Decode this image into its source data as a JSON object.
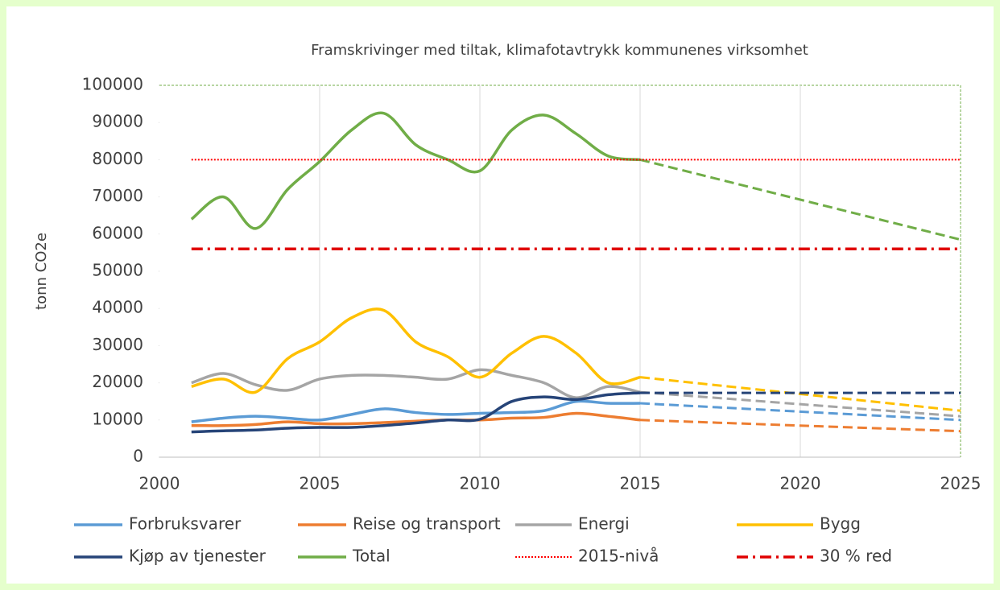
{
  "chart_data": {
    "type": "line",
    "title": "Framskrivinger med tiltak, klimafotavtrykk kommunenes virksomhet",
    "y_label": "tonn CO2e",
    "x": [
      2001,
      2002,
      2003,
      2004,
      2005,
      2006,
      2007,
      2008,
      2009,
      2010,
      2011,
      2012,
      2013,
      2014,
      2015,
      2025
    ],
    "xlim": [
      2000,
      2025
    ],
    "xticks": [
      2000,
      2005,
      2010,
      2015,
      2020,
      2025
    ],
    "ylim": [
      0,
      100000
    ],
    "yticks": [
      0,
      10000,
      20000,
      30000,
      40000,
      50000,
      60000,
      70000,
      80000,
      90000,
      100000
    ],
    "projection_from": 2015,
    "series": [
      {
        "name": "Forbruksvarer",
        "color": "#5b9bd5",
        "style": "smooth",
        "values": [
          9500,
          10500,
          11000,
          10500,
          10000,
          11500,
          13000,
          12000,
          11500,
          11800,
          12000,
          12500,
          15000,
          14500,
          14500,
          10000
        ]
      },
      {
        "name": "Reise og transport",
        "color": "#ed7d31",
        "style": "smooth",
        "values": [
          8500,
          8500,
          8800,
          9500,
          9000,
          9000,
          9300,
          9700,
          10000,
          10000,
          10500,
          10700,
          11800,
          11000,
          10000,
          7000
        ]
      },
      {
        "name": "Energi",
        "color": "#a5a5a5",
        "style": "smooth",
        "values": [
          20000,
          22500,
          19500,
          18000,
          21000,
          22000,
          22000,
          21500,
          21000,
          23500,
          22000,
          20000,
          16000,
          19000,
          17500,
          11000
        ]
      },
      {
        "name": "Bygg",
        "color": "#ffc000",
        "style": "smooth",
        "values": [
          19000,
          21000,
          17500,
          26500,
          31000,
          37500,
          39500,
          31000,
          27000,
          21500,
          28000,
          32500,
          28000,
          20000,
          21500,
          12500
        ]
      },
      {
        "name": "Kjøp av tjenester",
        "color": "#264478",
        "style": "smooth",
        "values": [
          6800,
          7100,
          7300,
          7800,
          8000,
          8000,
          8500,
          9200,
          10000,
          10200,
          15000,
          16200,
          15500,
          16800,
          17300,
          17300
        ]
      },
      {
        "name": "Total",
        "color": "#70ad47",
        "style": "smooth",
        "values": [
          64000,
          70000,
          61500,
          72000,
          79500,
          88000,
          92500,
          84000,
          80000,
          77000,
          88000,
          92000,
          87000,
          81000,
          80000,
          58500
        ]
      },
      {
        "name": "2015-nivå",
        "color": "#ff0000",
        "style": "dotted",
        "values": [
          80000,
          80000,
          80000,
          80000,
          80000,
          80000,
          80000,
          80000,
          80000,
          80000,
          80000,
          80000,
          80000,
          80000,
          80000,
          80000
        ]
      },
      {
        "name": "30 % red",
        "color": "#e00000",
        "style": "dashdot",
        "values": [
          56000,
          56000,
          56000,
          56000,
          56000,
          56000,
          56000,
          56000,
          56000,
          56000,
          56000,
          56000,
          56000,
          56000,
          56000,
          56000
        ]
      }
    ]
  }
}
